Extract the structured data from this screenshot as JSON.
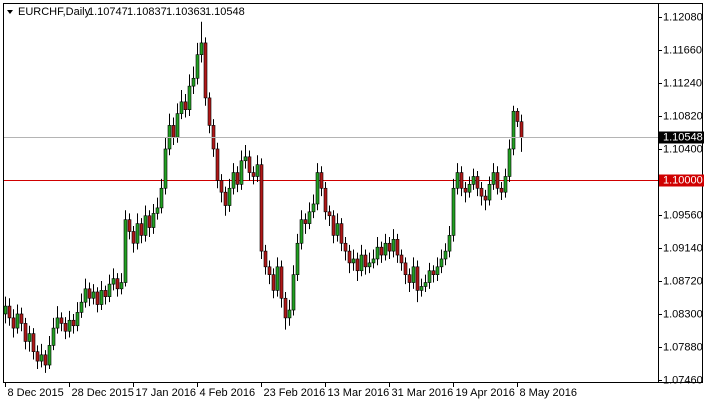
{
  "chart_data": {
    "type": "candlestick",
    "title": "EURCHF,Daily",
    "up_color": "#22a022",
    "down_color": "#b01818",
    "ylim": [
      1.07434,
      1.12258
    ],
    "yticks": [
      {
        "value": 1.1208,
        "label": "1.12080"
      },
      {
        "value": 1.1166,
        "label": "1.11660"
      },
      {
        "value": 1.1124,
        "label": "1.11240"
      },
      {
        "value": 1.1082,
        "label": "1.10820"
      },
      {
        "value": 1.104,
        "label": "1.10400"
      },
      {
        "value": 1.0956,
        "label": "1.09560"
      },
      {
        "value": 1.0914,
        "label": "1.09140"
      },
      {
        "value": 1.0872,
        "label": "1.08720"
      },
      {
        "value": 1.083,
        "label": "1.08300"
      },
      {
        "value": 1.0788,
        "label": "1.07880"
      },
      {
        "value": 1.0746,
        "label": "1.07460"
      }
    ],
    "levels": [
      {
        "value": 1.1,
        "label": "1.10000",
        "color": "#d00000"
      }
    ],
    "categories": [
      "8 Dec 2015",
      null,
      null,
      null,
      null,
      null,
      null,
      null,
      null,
      null,
      null,
      null,
      null,
      null,
      null,
      null,
      "28 Dec 2015",
      null,
      null,
      null,
      null,
      null,
      null,
      null,
      null,
      null,
      null,
      null,
      null,
      null,
      null,
      null,
      "17 Jan 2016",
      null,
      null,
      null,
      null,
      null,
      null,
      null,
      null,
      null,
      null,
      null,
      null,
      null,
      null,
      null,
      "4 Feb 2016",
      null,
      null,
      null,
      null,
      null,
      null,
      null,
      null,
      null,
      null,
      null,
      null,
      null,
      null,
      null,
      "23 Feb 2016",
      null,
      null,
      null,
      null,
      null,
      null,
      null,
      null,
      null,
      null,
      null,
      null,
      null,
      null,
      null,
      "13 Mar 2016",
      null,
      null,
      null,
      null,
      null,
      null,
      null,
      null,
      null,
      null,
      null,
      null,
      null,
      null,
      null,
      "31 Mar 2016",
      null,
      null,
      null,
      null,
      null,
      null,
      null,
      null,
      null,
      null,
      null,
      null,
      null,
      null,
      null,
      "19 Apr 2016",
      null,
      null,
      null,
      null,
      null,
      null,
      null,
      null,
      null,
      null,
      null,
      null,
      null,
      null,
      null,
      "8 May 2016",
      null
    ],
    "ohlc": [
      [
        1.083,
        1.0852,
        1.0818,
        1.084
      ],
      [
        1.084,
        1.085,
        1.0815,
        1.0825
      ],
      [
        1.0825,
        1.0836,
        1.08,
        1.0812
      ],
      [
        1.0812,
        1.0842,
        1.0805,
        1.083
      ],
      [
        1.083,
        1.0838,
        1.0808,
        1.0818
      ],
      [
        1.0818,
        1.0825,
        1.0785,
        1.0795
      ],
      [
        1.0795,
        1.0815,
        1.0782,
        1.0805
      ],
      [
        1.0805,
        1.0812,
        1.0772,
        1.0782
      ],
      [
        1.0782,
        1.079,
        1.076,
        1.077
      ],
      [
        1.077,
        1.0792,
        1.0762,
        1.0778
      ],
      [
        1.0778,
        1.0784,
        1.0755,
        1.0765
      ],
      [
        1.0765,
        1.0802,
        1.076,
        1.079
      ],
      [
        1.079,
        1.0825,
        1.0784,
        1.0812
      ],
      [
        1.0812,
        1.084,
        1.0805,
        1.0825
      ],
      [
        1.0825,
        1.0832,
        1.0808,
        1.0818
      ],
      [
        1.0818,
        1.0826,
        1.0798,
        1.0808
      ],
      [
        1.0808,
        1.0834,
        1.08,
        1.0822
      ],
      [
        1.0822,
        1.083,
        1.0805,
        1.0815
      ],
      [
        1.0815,
        1.0845,
        1.0808,
        1.0832
      ],
      [
        1.0832,
        1.0856,
        1.0825,
        1.0845
      ],
      [
        1.0845,
        1.0875,
        1.0838,
        1.0862
      ],
      [
        1.0862,
        1.087,
        1.084,
        1.085
      ],
      [
        1.085,
        1.0868,
        1.0842,
        1.0858
      ],
      [
        1.0858,
        1.0864,
        1.0832,
        1.0842
      ],
      [
        1.0842,
        1.0872,
        1.0835,
        1.086
      ],
      [
        1.086,
        1.0866,
        1.0842,
        1.0852
      ],
      [
        1.0852,
        1.088,
        1.0845,
        1.0868
      ],
      [
        1.0868,
        1.0888,
        1.086,
        1.0875
      ],
      [
        1.0875,
        1.0882,
        1.0852,
        1.0862
      ],
      [
        1.0862,
        1.0882,
        1.0855,
        1.087
      ],
      [
        1.087,
        1.0962,
        1.0865,
        1.095
      ],
      [
        1.095,
        1.0958,
        1.0925,
        1.0935
      ],
      [
        1.0935,
        1.0942,
        1.0908,
        1.092
      ],
      [
        1.092,
        1.0958,
        1.0912,
        1.0945
      ],
      [
        1.0945,
        1.0952,
        1.092,
        1.093
      ],
      [
        1.093,
        1.0968,
        1.0922,
        1.0955
      ],
      [
        1.0955,
        1.0962,
        1.0928,
        1.094
      ],
      [
        1.094,
        1.097,
        1.0932,
        1.0958
      ],
      [
        1.0958,
        1.0978,
        1.095,
        1.0965
      ],
      [
        1.0965,
        1.1002,
        1.0958,
        1.099
      ],
      [
        1.099,
        1.1055,
        1.0982,
        1.104
      ],
      [
        1.104,
        1.1085,
        1.1032,
        1.107
      ],
      [
        1.107,
        1.108,
        1.1045,
        1.1055
      ],
      [
        1.1055,
        1.1098,
        1.1048,
        1.1085
      ],
      [
        1.1085,
        1.1115,
        1.1078,
        1.11
      ],
      [
        1.11,
        1.111,
        1.108,
        1.109
      ],
      [
        1.109,
        1.1135,
        1.1082,
        1.112
      ],
      [
        1.112,
        1.1145,
        1.111,
        1.113
      ],
      [
        1.113,
        1.1175,
        1.1122,
        1.116
      ],
      [
        1.116,
        1.1202,
        1.115,
        1.1175
      ],
      [
        1.1175,
        1.1182,
        1.1095,
        1.1105
      ],
      [
        1.1105,
        1.1112,
        1.106,
        1.107
      ],
      [
        1.107,
        1.1078,
        1.103,
        1.104
      ],
      [
        1.104,
        1.1048,
        1.099,
        1.1
      ],
      [
        1.1,
        1.1008,
        1.0972,
        1.0985
      ],
      [
        1.0985,
        1.0992,
        1.0955,
        1.0968
      ],
      [
        1.0968,
        1.1002,
        1.096,
        1.099
      ],
      [
        1.099,
        1.1022,
        1.0982,
        1.101
      ],
      [
        1.101,
        1.1018,
        1.0985,
        1.0995
      ],
      [
        1.0995,
        1.1038,
        1.0988,
        1.1025
      ],
      [
        1.1025,
        1.1045,
        1.1015,
        1.103
      ],
      [
        1.103,
        1.1038,
        1.1,
        1.101
      ],
      [
        1.101,
        1.1018,
        1.0995,
        1.1005
      ],
      [
        1.1005,
        1.1032,
        1.0998,
        1.102
      ],
      [
        1.102,
        1.1028,
        1.09,
        1.091
      ],
      [
        1.091,
        1.0918,
        1.088,
        1.089
      ],
      [
        1.089,
        1.0898,
        1.0868,
        1.088
      ],
      [
        1.088,
        1.0888,
        1.085,
        1.086
      ],
      [
        1.086,
        1.0902,
        1.0852,
        1.089
      ],
      [
        1.089,
        1.0898,
        1.0838,
        1.085
      ],
      [
        1.085,
        1.0858,
        1.081,
        1.0825
      ],
      [
        1.0825,
        1.0848,
        1.0815,
        1.0835
      ],
      [
        1.0835,
        1.0892,
        1.0828,
        1.088
      ],
      [
        1.088,
        1.0932,
        1.0872,
        1.092
      ],
      [
        1.092,
        1.0962,
        1.0912,
        1.095
      ],
      [
        1.095,
        1.0958,
        1.0932,
        1.0945
      ],
      [
        1.0945,
        1.0972,
        1.0938,
        1.096
      ],
      [
        1.096,
        1.0982,
        1.0952,
        1.097
      ],
      [
        1.097,
        1.1022,
        1.0962,
        1.101
      ],
      [
        1.101,
        1.1018,
        1.098,
        1.099
      ],
      [
        1.099,
        1.0998,
        1.095,
        1.096
      ],
      [
        1.096,
        1.0968,
        1.0942,
        1.0955
      ],
      [
        1.0955,
        1.0962,
        1.092,
        1.093
      ],
      [
        1.093,
        1.0958,
        1.0922,
        1.0945
      ],
      [
        1.0945,
        1.0952,
        1.091,
        1.092
      ],
      [
        1.092,
        1.0928,
        1.0898,
        1.091
      ],
      [
        1.091,
        1.0918,
        1.0882,
        1.0895
      ],
      [
        1.0895,
        1.0912,
        1.0885,
        1.09
      ],
      [
        1.09,
        1.0908,
        1.0872,
        1.0885
      ],
      [
        1.0885,
        1.0918,
        1.0878,
        1.0905
      ],
      [
        1.0905,
        1.0912,
        1.088,
        1.089
      ],
      [
        1.089,
        1.0908,
        1.0882,
        1.0895
      ],
      [
        1.0895,
        1.0912,
        1.0888,
        1.09
      ],
      [
        1.09,
        1.0928,
        1.0892,
        1.0915
      ],
      [
        1.0915,
        1.0922,
        1.0895,
        1.0905
      ],
      [
        1.0905,
        1.0932,
        1.0898,
        1.092
      ],
      [
        1.092,
        1.0928,
        1.09,
        1.091
      ],
      [
        1.091,
        1.0938,
        1.0902,
        1.0925
      ],
      [
        1.0925,
        1.0932,
        1.0895,
        1.0905
      ],
      [
        1.0905,
        1.0912,
        1.0885,
        1.0895
      ],
      [
        1.0895,
        1.0902,
        1.0868,
        1.088
      ],
      [
        1.088,
        1.0888,
        1.0858,
        1.087
      ],
      [
        1.087,
        1.0902,
        1.0862,
        1.089
      ],
      [
        1.089,
        1.0898,
        1.0845,
        1.086
      ],
      [
        1.086,
        1.0875,
        1.0852,
        1.0865
      ],
      [
        1.0865,
        1.088,
        1.0858,
        1.087
      ],
      [
        1.087,
        1.0895,
        1.0862,
        1.0885
      ],
      [
        1.0885,
        1.0892,
        1.087,
        1.088
      ],
      [
        1.088,
        1.0902,
        1.0872,
        1.089
      ],
      [
        1.089,
        1.0912,
        1.0882,
        1.09
      ],
      [
        1.09,
        1.092,
        1.0892,
        1.091
      ],
      [
        1.091,
        1.0942,
        1.0902,
        1.093
      ],
      [
        1.093,
        1.1002,
        1.0922,
        1.099
      ],
      [
        1.099,
        1.1022,
        1.0982,
        1.101
      ],
      [
        1.101,
        1.1018,
        1.098,
        1.099
      ],
      [
        1.099,
        1.0998,
        1.0972,
        1.0985
      ],
      [
        1.0985,
        1.1005,
        1.0978,
        1.0995
      ],
      [
        1.0995,
        1.1015,
        1.0988,
        1.1005
      ],
      [
        1.1005,
        1.1012,
        1.098,
        1.099
      ],
      [
        1.099,
        1.0998,
        1.0968,
        1.098
      ],
      [
        1.098,
        1.0988,
        1.0962,
        1.0975
      ],
      [
        1.0975,
        1.1005,
        1.0968,
        1.0995
      ],
      [
        1.0995,
        1.1022,
        1.0988,
        1.101
      ],
      [
        1.101,
        1.1018,
        1.0982,
        1.099
      ],
      [
        1.099,
        1.0998,
        1.0975,
        1.0985
      ],
      [
        1.0985,
        1.1015,
        1.0978,
        1.1005
      ],
      [
        1.1005,
        1.1052,
        1.0998,
        1.104
      ],
      [
        1.104,
        1.1095,
        1.1032,
        1.1088
      ],
      [
        1.1088,
        1.1092,
        1.1068,
        1.1075
      ],
      [
        1.10747,
        1.10837,
        1.10363,
        1.10548
      ]
    ]
  }
}
